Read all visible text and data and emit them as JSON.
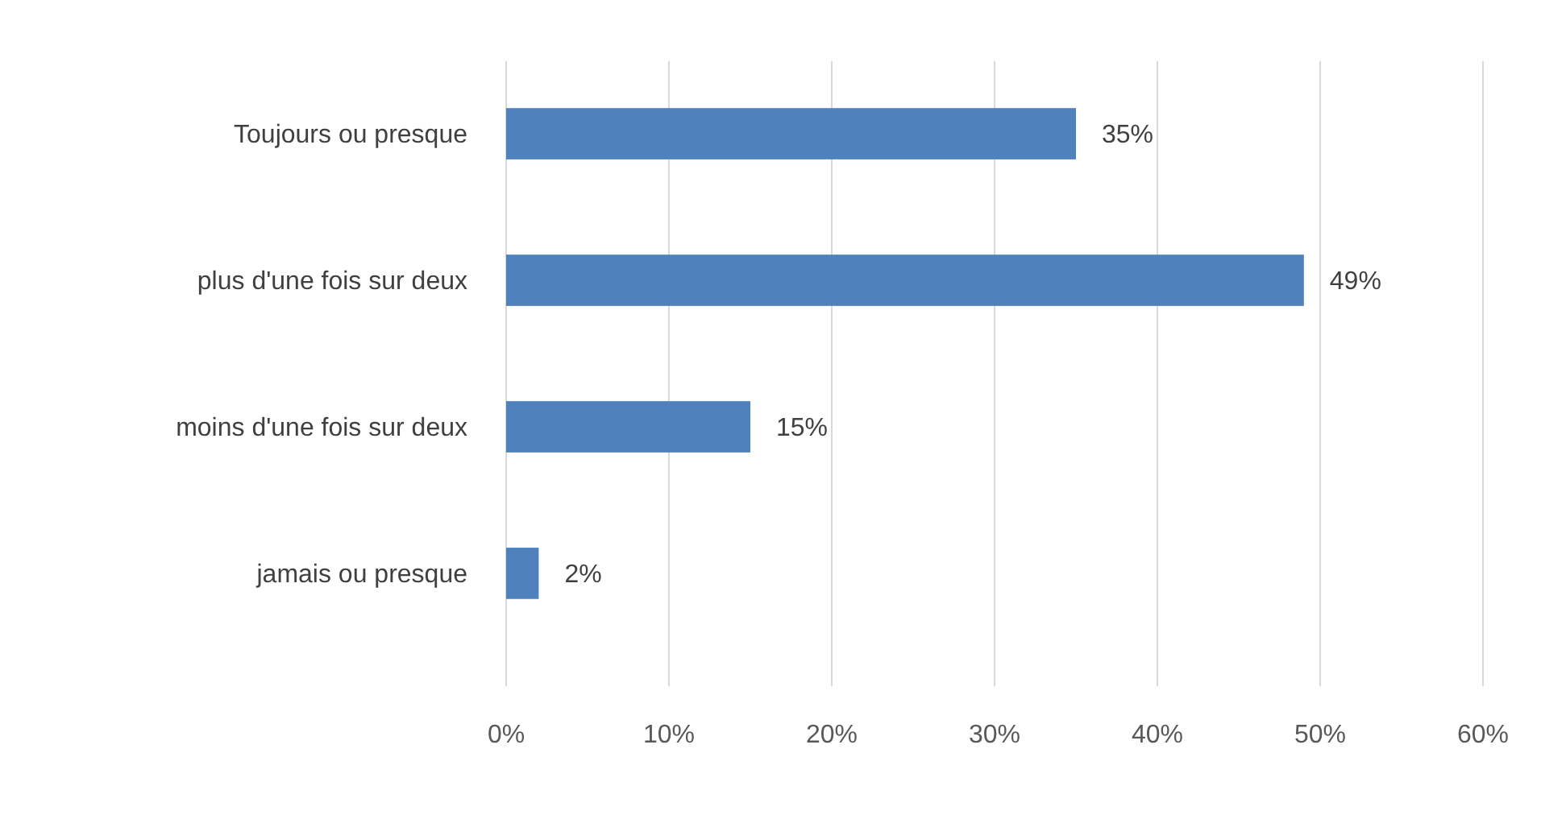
{
  "chart_data": {
    "type": "bar",
    "orientation": "horizontal",
    "categories": [
      "Toujours ou presque",
      "plus d'une fois sur deux",
      "moins d'une fois sur deux",
      "jamais ou presque"
    ],
    "values": [
      35,
      49,
      15,
      2
    ],
    "color": "#4f81bd",
    "value_labels": [
      "35%",
      "49%",
      "15%",
      "2%"
    ],
    "xlim": [
      0,
      60
    ],
    "xticks": [
      {
        "value": 0,
        "label": "0%"
      },
      {
        "value": 10,
        "label": "10%"
      },
      {
        "value": 20,
        "label": "20%"
      },
      {
        "value": 30,
        "label": "30%"
      },
      {
        "value": 40,
        "label": "40%"
      },
      {
        "value": 50,
        "label": "50%"
      },
      {
        "value": 60,
        "label": "60%"
      }
    ],
    "grid": "x"
  }
}
